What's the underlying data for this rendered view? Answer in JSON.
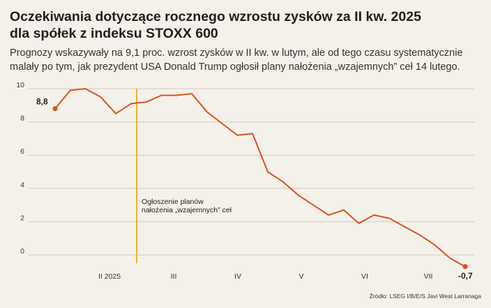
{
  "title_line1": "Oczekiwania dotyczące rocznego wzrostu zysków za II kw. 2025",
  "title_line2": "dla spółek z indeksu STOXX 600",
  "subtitle": "Prognozy wskazywały na 9,1 proc. wzrost zysków w II kw. w lutym, ale od tego czasu systematycznie malały po tym, jak prezydent USA Donald Trump ogłosił plany nałożenia „wzajemnych” ceł 14 lutego.",
  "source": "Źródło: LSEG I/B/E/S Javi West Larranaga",
  "colors": {
    "line": "#d9531e",
    "event_line": "#f5b323",
    "grid": "#cfcac0",
    "background": "#f4f1ea"
  },
  "chart_data": {
    "type": "line",
    "title": "Oczekiwania dotyczące rocznego wzrostu zysków za II kw. 2025 dla spółek z indeksu STOXX 600",
    "xlabel": "",
    "ylabel": "",
    "ylim": [
      0,
      10
    ],
    "y_ticks": [
      "10",
      "8",
      "6",
      "4",
      "2",
      "0"
    ],
    "x_ticks": [
      "II 2025",
      "III",
      "IV",
      "V",
      "VI",
      "VII"
    ],
    "grid": true,
    "series": [
      {
        "values": [
          8.8,
          9.9,
          10.0,
          9.5,
          8.5,
          9.1,
          9.2,
          9.6,
          9.6,
          9.7,
          8.6,
          7.9,
          7.2,
          7.3,
          5.0,
          4.4,
          3.6,
          3.0,
          2.4,
          2.7,
          1.9,
          2.4,
          2.2,
          1.7,
          1.2,
          0.6,
          -0.2,
          -0.7
        ]
      }
    ],
    "start_label": "8,8",
    "end_label": "-0,7",
    "event": {
      "line1": "Ogłoszenie planów",
      "line2": "nałożenia „wzajemnych” ceł"
    }
  }
}
